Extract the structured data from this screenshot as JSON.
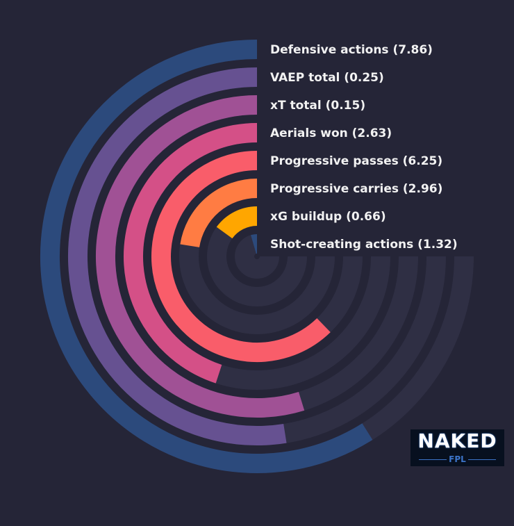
{
  "chart_data": {
    "type": "radial_bar",
    "max_value": 10,
    "colors": {
      "background": "#252537",
      "track": "#2f2f44"
    },
    "series": [
      {
        "name": "Defensive actions (7.86)",
        "value": 7.86,
        "color": "#2c4a7c"
      },
      {
        "name": "VAEP total (0.25)",
        "value": 0.25,
        "fraction": 0.7,
        "color": "#665191"
      },
      {
        "name": "xT total (0.15)",
        "value": 0.15,
        "fraction": 0.73,
        "color": "#a05195"
      },
      {
        "name": "Aerials won (2.63)",
        "value": 2.63,
        "fraction": 0.6,
        "color": "#d45087"
      },
      {
        "name": "Progressive passes (6.25)",
        "value": 6.25,
        "fraction": 0.83,
        "color": "#f95d6a"
      },
      {
        "name": "Progressive carries (2.96)",
        "value": 2.96,
        "fraction": 0.3,
        "color": "#ff7c43"
      },
      {
        "name": "xG buildup (0.66)",
        "value": 0.66,
        "fraction": 0.2,
        "color": "#ffa600"
      },
      {
        "name": "Shot-creating actions (1.32)",
        "value": 1.32,
        "fraction": 0.06,
        "color": "#2c4a7c"
      }
    ]
  },
  "logo": {
    "word": "NAKED",
    "sub": "FPL"
  }
}
